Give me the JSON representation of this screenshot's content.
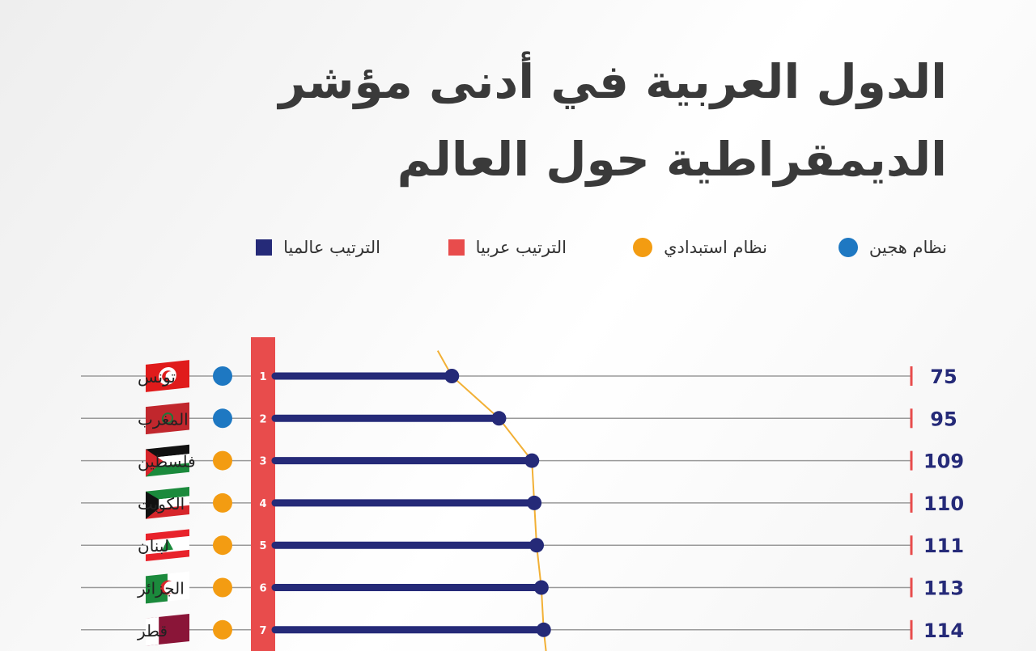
{
  "title_lines": [
    "الدول العربية في أدنى مؤشر",
    "الديمقراطية حول العالم"
  ],
  "legend": [
    {
      "label": "نظام هجين",
      "shape": "circle",
      "color": "#1e78c2"
    },
    {
      "label": "نظام استبدادي",
      "shape": "circle",
      "color": "#f39c12"
    },
    {
      "label": "الترتيب عربيا",
      "shape": "square",
      "color": "#e84c4c"
    },
    {
      "label": "الترتيب عالميا",
      "shape": "square",
      "color": "#252a78"
    }
  ],
  "colors": {
    "hybrid": "#1e78c2",
    "authoritarian": "#f39c12",
    "arab_rank": "#e84c4c",
    "world_rank": "#252a78",
    "trend_line": "#f2b035",
    "grid_line": "#9a9a9a"
  },
  "chart_data": {
    "type": "bar",
    "orientation": "horizontal",
    "x_range": [
      0,
      167
    ],
    "categories": [
      "تونس",
      "المغرب",
      "فلسطين",
      "الكويت",
      "لبنان",
      "الجزائر",
      "قطر"
    ],
    "arab_rank": [
      "1",
      "2",
      "3",
      "4",
      "5",
      "6",
      "7"
    ],
    "values": [
      75,
      95,
      109,
      110,
      111,
      113,
      114
    ],
    "regime": [
      "hybrid",
      "hybrid",
      "authoritarian",
      "authoritarian",
      "authoritarian",
      "authoritarian",
      "authoritarian"
    ],
    "flags": [
      "tunisia",
      "morocco",
      "palestine",
      "kuwait",
      "lebanon",
      "algeria",
      "qatar"
    ]
  }
}
